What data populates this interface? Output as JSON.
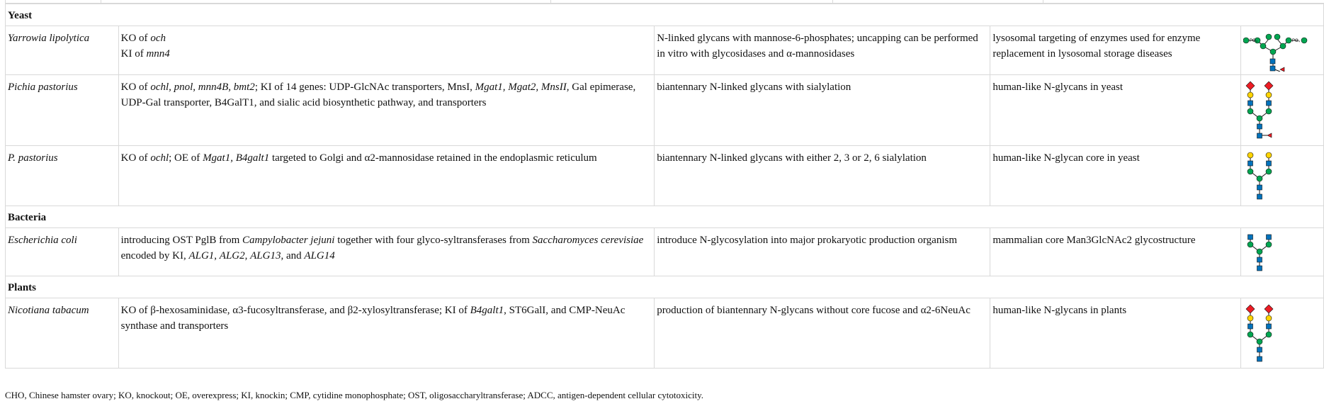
{
  "sections": {
    "yeast": "Yeast",
    "bacteria": "Bacteria",
    "plants": "Plants"
  },
  "rows": [
    {
      "organism": "Yarrowia lipolytica",
      "mod_1": "KO of ",
      "mod_1i": "och",
      "mod_2": "KI of ",
      "mod_2i": "mnn4",
      "product": "N-linked glycans with mannose-6-phosphates; uncapping can be performed in vitro with glycosidases and α-mannosidases",
      "application": "lysosomal targeting of enzymes used for enzyme replacement in lysosomal storage diseases",
      "glycan_label": "PO₄"
    },
    {
      "organism": "Pichia pastorius",
      "mod_1": "KO of ",
      "mod_1i": "ochl, pnol, mnn4B, bmt2",
      "mod_2": "; KI of 14 genes: UDP-GlcNAc transporters, MnsI, ",
      "mod_2i": "Mgat1, Mgat2, MnsII",
      "mod_3": ", Gal epimerase, UDP-Gal transporter, B4GalT1, and sialic acid biosynthetic pathway, and transporters",
      "product": "biantennary N-linked glycans with sialylation",
      "application": "human-like N-glycans in yeast"
    },
    {
      "organism": "P. pastorius",
      "mod_1": "KO of ",
      "mod_1i": "ochl",
      "mod_2": "; OE of ",
      "mod_2i": "Mgat1, B4galt1",
      "mod_3": " targeted to Golgi and α2-mannosidase retained in the endoplasmic reticulum",
      "product": "biantennary N-linked glycans with either 2, 3 or 2, 6 sialylation",
      "application": "human-like N-glycan core in yeast"
    },
    {
      "organism": "Escherichia coli",
      "mod_1": "introducing OST PglB from ",
      "mod_1i": "Campylobacter jejuni",
      "mod_2": " together with four glyco-syltransferases from ",
      "mod_2i": "Saccharomyces cerevisiae",
      "mod_3": " encoded by KI, ",
      "mod_3i": "ALG1",
      "mod_4": ", ",
      "mod_4i": "ALG2",
      "mod_5": ", ",
      "mod_5i": "ALG13",
      "mod_6": ", and ",
      "mod_6i": "ALG14",
      "product": "introduce N-glycosylation into major prokaryotic production organism",
      "application": "mammalian core Man3GlcNAc2 glycostructure"
    },
    {
      "organism": "Nicotiana tabacum",
      "mod_1": "KO of β-hexosaminidase, α3-fucosyltransferase, and β2-xylosyltransferase; KI of ",
      "mod_1i": "B4galt1",
      "mod_2": ", ST6GalI, and CMP-NeuAc synthase and transporters",
      "product": "production of biantennary N-glycans without core fucose and α2-6NeuAc",
      "application": "human-like N-glycans in plants"
    }
  ],
  "footnote": "CHO, Chinese hamster ovary; KO, knockout; OE, overexpress; KI, knockin; CMP, cytidine monophosphate; OST, oligosaccharyltransferase; ADCC, antigen-dependent cellular cytotoxicity.",
  "colors": {
    "glcnac_blue": "#0072bc",
    "mannose_green": "#00a651",
    "galactose_yellow": "#ffd400",
    "sialic_red": "#ed1c24",
    "border": "#d9d9d9"
  },
  "icons": [
    "glycan-structure-icon",
    "glcnac-square-icon",
    "mannose-circle-icon",
    "galactose-circle-icon",
    "sialic-diamond-icon",
    "fucose-triangle-icon"
  ]
}
